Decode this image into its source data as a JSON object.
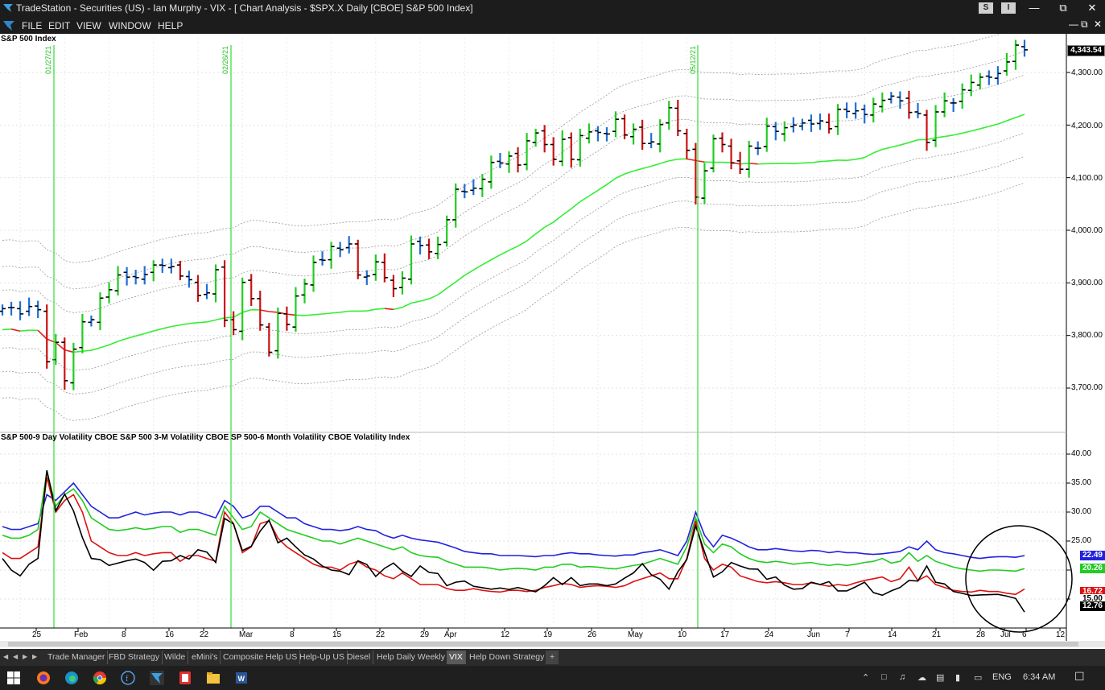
{
  "window": {
    "title": "TradeStation   -  Securities (US)  -  Ian Murphy  - VIX  - [ Chart Analysis  - $SPX.X Daily [CBOE] S&P 500 Index]",
    "mini_buttons": [
      "S",
      "I"
    ],
    "menu": [
      "FILE",
      "EDIT",
      "VIEW",
      "WINDOW",
      "HELP"
    ]
  },
  "price_panel": {
    "title": "S&P 500 Index",
    "y_labels": [
      "4,300.00",
      "4,200.00",
      "4,100.00",
      "4,000.00",
      "3,900.00",
      "3,800.00",
      "3,700.00"
    ],
    "last_price": "4,343.54"
  },
  "vol_panel": {
    "title": "S&P 500-9 Day Volatility  CBOE S&P 500 3-M Volatility  CBOE SP 500-6 Month Volatility  CBOE Volatility Index",
    "y_labels": [
      "40.00",
      "35.00",
      "30.00",
      "25.00",
      "15.00"
    ],
    "last_values": [
      {
        "value": "22.49",
        "color": "#2222dd"
      },
      {
        "value": "20.26",
        "color": "#22cc22"
      },
      {
        "value": "16.72",
        "color": "#dd1111"
      },
      {
        "value": "15.00",
        "color": "#ffffff"
      },
      {
        "value": "12.76",
        "color": "#000000"
      }
    ]
  },
  "x_axis": [
    "25",
    "Feb",
    "8",
    "16",
    "22",
    "Mar",
    "8",
    "15",
    "22",
    "29",
    "Apr",
    "12",
    "19",
    "26",
    "May",
    "10",
    "17",
    "24",
    "Jun",
    "7",
    "14",
    "21",
    "28",
    "Jul",
    "6",
    "12"
  ],
  "markers": [
    "01/27/21",
    "02/26/21",
    "05/12/21"
  ],
  "colors": {
    "up": "#22cc22",
    "down": "#cc1111",
    "neutral": "#1f6fd6",
    "ma": "#33ee33"
  },
  "tabs": [
    "Trade Manager",
    "FBD Strategy",
    "Wilde",
    "eMini's",
    "Composite Help US",
    "Help-Up US",
    "Diesel",
    "Help Daily Weekly",
    "VIX",
    "Help Down Strategy",
    "+"
  ],
  "active_tab": "VIX",
  "taskbar": {
    "apps": [
      "windows-start",
      "firefox",
      "edge",
      "chrome",
      "app-f",
      "tradestation",
      "app-red",
      "file-explorer",
      "word"
    ],
    "language": "ENG",
    "time": "6:34 AM"
  },
  "chart_data": [
    {
      "type": "ohlc",
      "title": "S&P 500 Index",
      "ylim": [
        3650,
        4380
      ],
      "x": [
        "Jan 20",
        "Jan 21",
        "Jan 22",
        "Jan 25",
        "Jan 26",
        "Jan 27",
        "Jan 28",
        "Jan 29",
        "Feb 1",
        "Feb 2",
        "Feb 3",
        "Feb 4",
        "Feb 5",
        "Feb 8",
        "Feb 9",
        "Feb 10",
        "Feb 11",
        "Feb 12",
        "Feb 16",
        "Feb 17",
        "Feb 18",
        "Feb 19",
        "Feb 22",
        "Feb 23",
        "Feb 24",
        "Feb 25",
        "Feb 26",
        "Mar 1",
        "Mar 2",
        "Mar 3",
        "Mar 4",
        "Mar 5",
        "Mar 8",
        "Mar 9",
        "Mar 10",
        "Mar 11",
        "Mar 12",
        "Mar 15",
        "Mar 16",
        "Mar 17",
        "Mar 18",
        "Mar 19",
        "Mar 22",
        "Mar 23",
        "Mar 24",
        "Mar 25",
        "Mar 26",
        "Mar 29",
        "Mar 30",
        "Mar 31",
        "Apr 1",
        "Apr 5",
        "Apr 6",
        "Apr 7",
        "Apr 8",
        "Apr 9",
        "Apr 12",
        "Apr 13",
        "Apr 14",
        "Apr 15",
        "Apr 16",
        "Apr 19",
        "Apr 20",
        "Apr 21",
        "Apr 22",
        "Apr 23",
        "Apr 26",
        "Apr 27",
        "Apr 28",
        "Apr 29",
        "Apr 30",
        "May 3",
        "May 4",
        "May 5",
        "May 6",
        "May 7",
        "May 10",
        "May 11",
        "May 12",
        "May 13",
        "May 14",
        "May 17",
        "May 18",
        "May 19",
        "May 20",
        "May 21",
        "May 24",
        "May 25",
        "May 26",
        "May 27",
        "May 28",
        "Jun 1",
        "Jun 2",
        "Jun 3",
        "Jun 4",
        "Jun 7",
        "Jun 8",
        "Jun 9",
        "Jun 10",
        "Jun 11",
        "Jun 14",
        "Jun 15",
        "Jun 16",
        "Jun 17",
        "Jun 18",
        "Jun 21",
        "Jun 22",
        "Jun 23",
        "Jun 24",
        "Jun 25",
        "Jun 28",
        "Jun 29",
        "Jun 30",
        "Jul 1",
        "Jul 2",
        "Jul 6"
      ],
      "series": [
        {
          "name": "Close",
          "values": [
            3851,
            3853,
            3841,
            3855,
            3849,
            3750,
            3787,
            3714,
            3774,
            3826,
            3830,
            3871,
            3887,
            3915,
            3911,
            3910,
            3916,
            3934,
            3933,
            3931,
            3913,
            3906,
            3876,
            3881,
            3925,
            3829,
            3811,
            3901,
            3870,
            3820,
            3768,
            3842,
            3821,
            3875,
            3898,
            3939,
            3943,
            3969,
            3963,
            3974,
            3915,
            3913,
            3940,
            3910,
            3889,
            3909,
            3974,
            3971,
            3959,
            3973,
            4020,
            4078,
            4073,
            4080,
            4097,
            4129,
            4128,
            4141,
            4124,
            4170,
            4185,
            4163,
            4135,
            4173,
            4135,
            4180,
            4187,
            4186,
            4183,
            4211,
            4181,
            4192,
            4165,
            4168,
            4201,
            4233,
            4189,
            4152,
            4063,
            4113,
            4174,
            4163,
            4128,
            4116,
            4160,
            4156,
            4198,
            4188,
            4195,
            4200,
            4204,
            4202,
            4208,
            4193,
            4230,
            4226,
            4227,
            4220,
            4240,
            4247,
            4255,
            4246,
            4224,
            4222,
            4167,
            4225,
            4246,
            4242,
            4267,
            4281,
            4291,
            4291,
            4298,
            4320,
            4352,
            4343
          ]
        }
      ]
    },
    {
      "type": "line",
      "title": "S&P 500-9 Day Volatility  CBOE S&P 500 3-M Volatility  CBOE SP 500-6 Month Volatility  CBOE Volatility Index",
      "ylim": [
        10,
        43
      ],
      "series": [
        {
          "name": "CBOE SP 500-6 Month Volatility",
          "color": "#2222dd",
          "values": [
            27.5,
            27,
            27,
            27.5,
            28,
            33,
            32,
            33.5,
            35,
            33,
            31,
            30,
            29,
            29,
            29.5,
            30,
            29.5,
            29.8,
            30,
            30,
            29.5,
            30,
            30,
            29.5,
            29,
            32,
            31,
            29,
            29.5,
            31,
            31,
            30,
            29,
            29,
            28,
            27.5,
            27,
            27,
            26.8,
            27,
            27.5,
            27,
            26.8,
            26,
            25.5,
            26,
            25.5,
            25.2,
            25,
            24.8,
            24.3,
            23.8,
            23.2,
            23,
            22.8,
            22.8,
            22.5,
            22.5,
            22.5,
            22.4,
            22.3,
            22.5,
            22.5,
            22.8,
            23,
            22.8,
            22.8,
            22.6,
            22.5,
            22.4,
            22.6,
            22.6,
            23,
            23.2,
            23.5,
            23,
            22.5,
            25,
            30,
            26,
            24,
            26,
            25.5,
            24.8,
            24,
            23.5,
            23.5,
            23.7,
            23.5,
            23.3,
            23.2,
            23.4,
            23.3,
            23,
            23.2,
            23,
            23,
            22.8,
            22.7,
            22.8,
            23,
            23.2,
            24,
            23.5,
            25,
            23.5,
            23,
            22.8,
            22.5,
            22.2,
            22,
            22.2,
            22.3,
            22.3,
            22.2,
            22.49
          ]
        },
        {
          "name": "CBOE S&P 500 3-M Volatility",
          "color": "#22cc22",
          "values": [
            26,
            25.5,
            25.5,
            26,
            27,
            37,
            31,
            33,
            34,
            32,
            29,
            28,
            27,
            26.8,
            27,
            27.3,
            27,
            27.2,
            27.5,
            27.5,
            26.5,
            27,
            27,
            26.5,
            26,
            31,
            29,
            27,
            27.5,
            30,
            29,
            28,
            27,
            26.5,
            26,
            25.5,
            25,
            25,
            24.5,
            25,
            25.5,
            25,
            24.5,
            24,
            23.5,
            24,
            23,
            22.5,
            22.3,
            22.2,
            21.5,
            21,
            20.5,
            20.5,
            20.5,
            20.3,
            20,
            20.2,
            20.3,
            20.2,
            20,
            20.5,
            20.5,
            21,
            21,
            20.5,
            20.6,
            20.5,
            20.3,
            20.2,
            20.5,
            20.8,
            21,
            21.5,
            22,
            21.5,
            21,
            24,
            29,
            24.5,
            23,
            24.5,
            24,
            22.8,
            22,
            21.5,
            21.3,
            21.5,
            21.3,
            21,
            21.2,
            21.3,
            21,
            20.8,
            21,
            20.8,
            21,
            21.3,
            21.5,
            22,
            21.2,
            21.5,
            23,
            21.5,
            22.5,
            21.5,
            21,
            20.5,
            20.2,
            20,
            19.8,
            20,
            20,
            19.9,
            19.8,
            20.26
          ]
        },
        {
          "name": "S&P 500-9 Day Volatility",
          "color": "#dd1111",
          "values": [
            23,
            22,
            22,
            23,
            24,
            36,
            30,
            32,
            33,
            30,
            25,
            24,
            23,
            22.5,
            22.5,
            23,
            22.5,
            22.8,
            23,
            23,
            21.5,
            22.5,
            22.5,
            22,
            21.5,
            30,
            28,
            23,
            24,
            28,
            28.5,
            25.5,
            24,
            23,
            22,
            21,
            20.5,
            20.5,
            20,
            21,
            21.5,
            20.5,
            20,
            19,
            18.5,
            19.5,
            18.5,
            17.5,
            17.5,
            17.5,
            16.8,
            16.5,
            16.5,
            16.8,
            16.5,
            16.3,
            16.2,
            16.5,
            16.5,
            16.3,
            16.5,
            17,
            17.3,
            17.7,
            17.5,
            17,
            17.2,
            17.3,
            17.2,
            17,
            17.3,
            18,
            18.5,
            19,
            19.5,
            18.5,
            18.5,
            22,
            28.5,
            22,
            20,
            21,
            20.5,
            19,
            18.5,
            18,
            17.8,
            18,
            17.8,
            17.5,
            17.5,
            17.8,
            17.5,
            17.2,
            17.5,
            17.3,
            17.8,
            18.2,
            18.5,
            18.8,
            18,
            18.5,
            20.5,
            18.2,
            19,
            17.5,
            17,
            16.5,
            16.3,
            16.2,
            16.5,
            16.3,
            16.3,
            16,
            15.8,
            16.72
          ]
        },
        {
          "name": "CBOE Volatility Index",
          "color": "#000000",
          "values": [
            22,
            20,
            19,
            21,
            22,
            37.2,
            30.2,
            33.1,
            30.2,
            25.6,
            22,
            21.8,
            20.8,
            21.2,
            21.6,
            21.9,
            21.3,
            19.97,
            21.5,
            21.6,
            22.5,
            21.9,
            23.5,
            23.1,
            21.3,
            28.9,
            27.95,
            23.35,
            24.1,
            26.7,
            28.6,
            24.7,
            25.5,
            24,
            22.6,
            21.9,
            20.7,
            20,
            19.8,
            19.2,
            21.6,
            20.95,
            18.9,
            20.3,
            21.2,
            19.8,
            18.9,
            20.7,
            19.6,
            19.4,
            17.3,
            17.9,
            18.1,
            17.2,
            16.95,
            16.7,
            16.9,
            16.65,
            16.99,
            16.6,
            16.25,
            17.3,
            18.7,
            17.5,
            18.7,
            17.3,
            17.6,
            17.6,
            17.3,
            17.6,
            18.6,
            19.5,
            21.1,
            19.2,
            18.4,
            16.7,
            19.7,
            21.8,
            27.6,
            23.1,
            18.8,
            19.7,
            21.3,
            20.7,
            20.2,
            20.15,
            18.4,
            18.8,
            17.4,
            16.7,
            16.8,
            17.9,
            17.5,
            18,
            16.4,
            16.4,
            17.1,
            17.9,
            16.1,
            15.65,
            16.4,
            17,
            18.2,
            18.1,
            20.7,
            17.9,
            17.6,
            16.3,
            15.97,
            15.6,
            15.7,
            15.75,
            15.8,
            15.5,
            15.1,
            12.76
          ]
        }
      ]
    }
  ]
}
